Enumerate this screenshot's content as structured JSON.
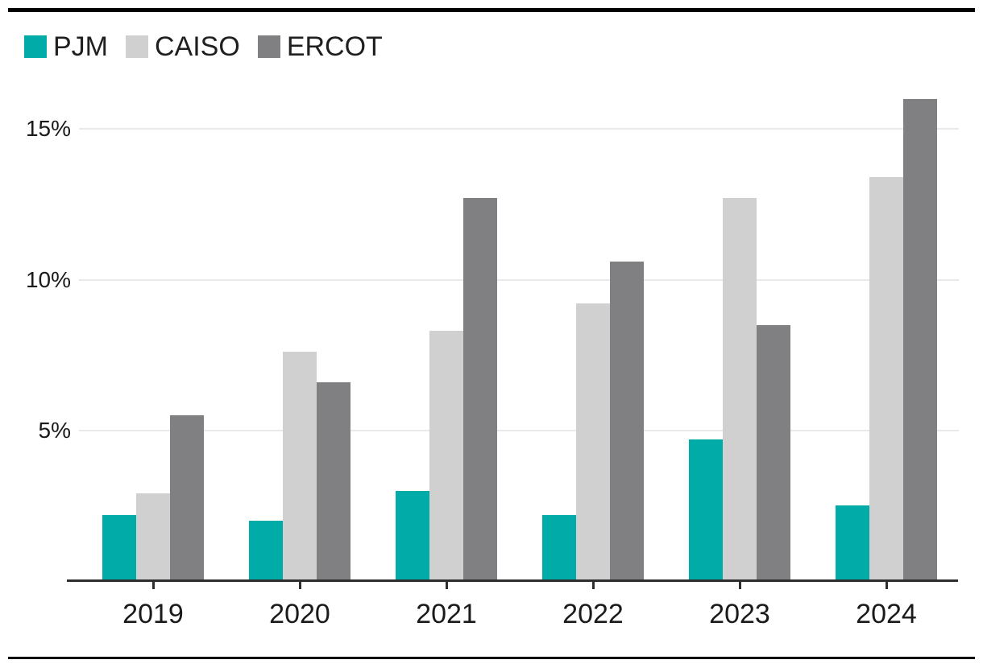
{
  "chart_data": {
    "type": "bar",
    "title": "",
    "xlabel": "",
    "ylabel": "",
    "categories": [
      "2019",
      "2020",
      "2021",
      "2022",
      "2023",
      "2024"
    ],
    "series": [
      {
        "name": "PJM",
        "color": "#00ABA8",
        "values": [
          2.2,
          2.0,
          3.0,
          2.2,
          4.7,
          2.5
        ]
      },
      {
        "name": "CAISO",
        "color": "#D0D0D0",
        "values": [
          2.9,
          7.6,
          8.3,
          9.2,
          12.7,
          13.4
        ]
      },
      {
        "name": "ERCOT",
        "color": "#808083",
        "values": [
          5.5,
          6.6,
          12.7,
          10.6,
          8.5,
          16.0
        ]
      }
    ],
    "y_ticks": [
      {
        "value": 5,
        "label": "5%"
      },
      {
        "value": 10,
        "label": "10%"
      },
      {
        "value": 15,
        "label": "15%"
      }
    ],
    "ylim": [
      0,
      16.5
    ],
    "grid": "horizontal",
    "legend_position": "top-left",
    "unit": "percent"
  },
  "colors": {
    "background": "#FFFFFF",
    "gridline": "#E9E9E9",
    "axis": "#2E2E2E",
    "text": "#1A1A1A",
    "rule": "#000000"
  }
}
